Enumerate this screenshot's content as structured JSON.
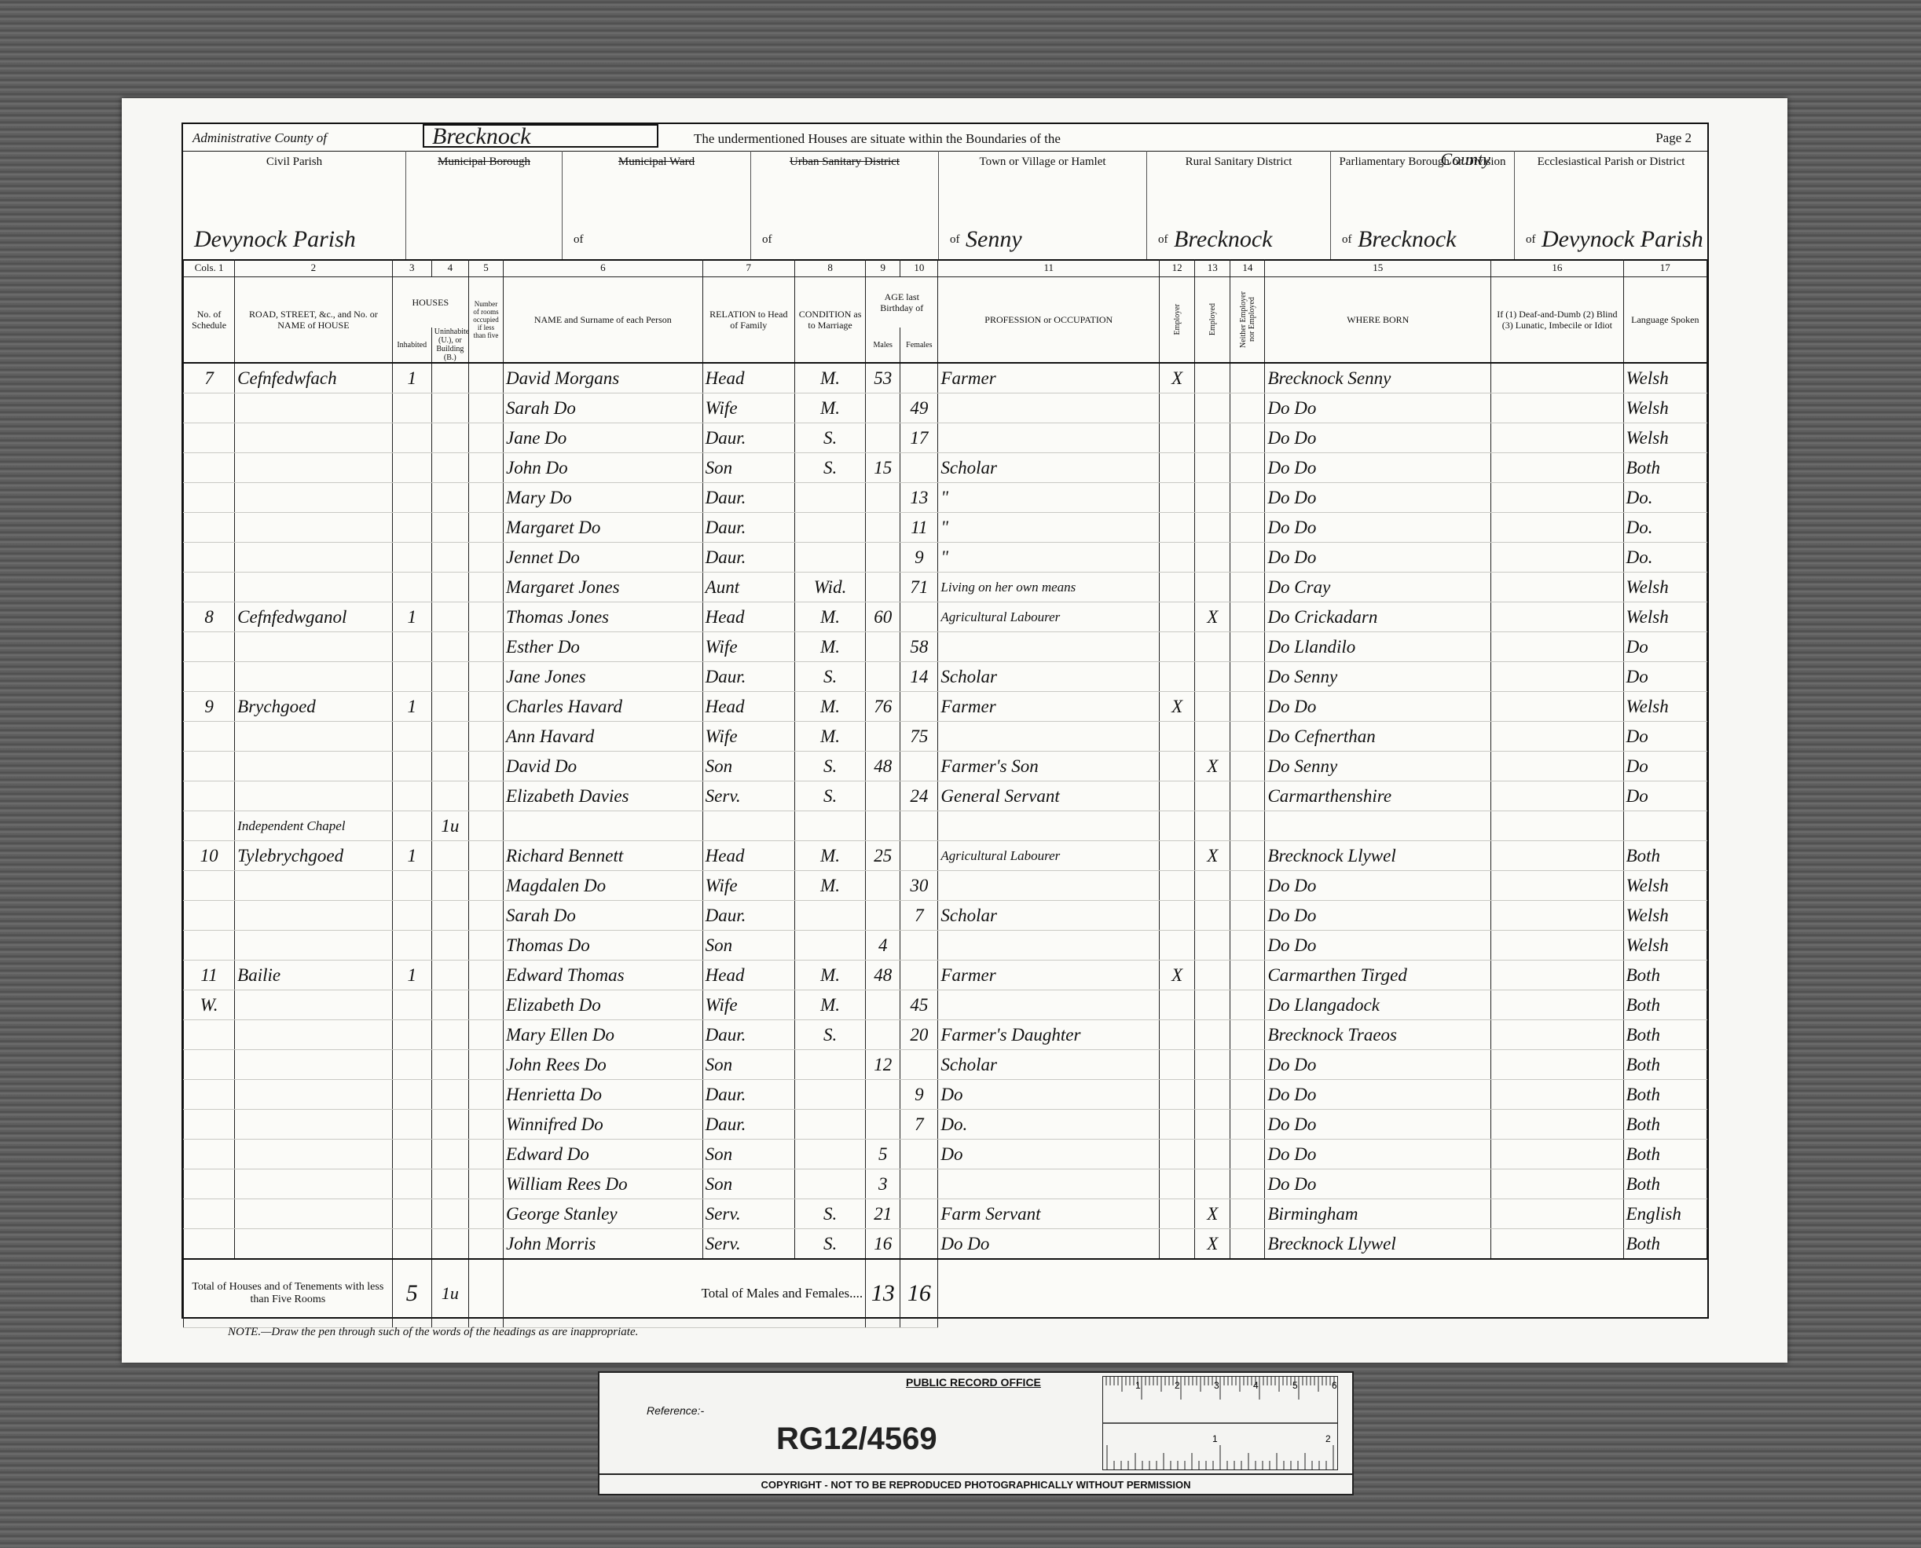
{
  "header": {
    "county_label": "Administrative County of",
    "county": "Brecknock",
    "boundaries": "The undermentioned Houses are situate within the Boundaries of the",
    "page": "Page 2"
  },
  "areas": [
    {
      "label": "Civil Parish",
      "value": "Devynock Parish"
    },
    {
      "label": "Municipal Borough",
      "struck": true
    },
    {
      "label": "Municipal Ward",
      "struck": true,
      "prefix": "of"
    },
    {
      "label": "Urban Sanitary District",
      "struck": true,
      "prefix": "of"
    },
    {
      "label": "Town or Village or Hamlet",
      "prefix": "of",
      "value": "Senny"
    },
    {
      "label": "Rural Sanitary District",
      "prefix": "of",
      "value": "Brecknock"
    },
    {
      "label": "Parliamentary Borough or Division",
      "annotation": "County",
      "prefix": "of",
      "value": "Brecknock"
    },
    {
      "label": "Ecclesiastical Parish or District",
      "prefix": "of",
      "value": "Devynock Parish"
    }
  ],
  "table": {
    "groups": [
      "HOUSES",
      "AGE last Birthday of"
    ],
    "columns": [
      {
        "number": "Cols. 1",
        "heading": "No. of Schedule"
      },
      {
        "number": "2",
        "heading": "ROAD, STREET, &c., and No. or NAME of HOUSE"
      },
      {
        "number": "3",
        "heading": "Inhabited"
      },
      {
        "number": "4",
        "heading": "Uninhabited (U.), or Building (B.)"
      },
      {
        "number": "5",
        "heading": "Number of rooms occupied if less than five"
      },
      {
        "number": "6",
        "heading": "NAME and Surname of each Person"
      },
      {
        "number": "7",
        "heading": "RELATION to Head of Family"
      },
      {
        "number": "8",
        "heading": "CONDITION as to Marriage"
      },
      {
        "number": "9",
        "heading": "Males"
      },
      {
        "number": "10",
        "heading": "Females"
      },
      {
        "number": "11",
        "heading": "PROFESSION or OCCUPATION"
      },
      {
        "number": "12",
        "heading": "Employer"
      },
      {
        "number": "13",
        "heading": "Employed"
      },
      {
        "number": "14",
        "heading": "Neither Employer nor Employed"
      },
      {
        "number": "15",
        "heading": "WHERE BORN"
      },
      {
        "number": "16",
        "heading": "If (1) Deaf-and-Dumb (2) Blind (3) Lunatic, Imbecile or Idiot"
      },
      {
        "number": "17",
        "heading": "Language Spoken"
      }
    ],
    "rows": [
      {
        "schedule": 7,
        "address": "Cefnfedwfach",
        "inhabited": 1,
        "name": "David Morgans",
        "relation": "Head",
        "condition": "M.",
        "males": 53,
        "occupation": "Farmer",
        "employer": "X",
        "where_born": "Brecknock Senny",
        "language": "Welsh"
      },
      {
        "name": "Sarah Do",
        "relation": "Wife",
        "condition": "M.",
        "females": 49,
        "where_born": "Do Do",
        "language": "Welsh"
      },
      {
        "name": "Jane Do",
        "relation": "Daur.",
        "condition": "S.",
        "females": 17,
        "where_born": "Do Do",
        "language": "Welsh"
      },
      {
        "name": "John Do",
        "relation": "Son",
        "condition": "S.",
        "males": 15,
        "occupation": "Scholar",
        "where_born": "Do Do",
        "language": "Both"
      },
      {
        "name": "Mary Do",
        "relation": "Daur.",
        "females": 13,
        "occupation": "\"",
        "where_born": "Do Do",
        "language": "Do."
      },
      {
        "name": "Margaret Do",
        "relation": "Daur.",
        "females": 11,
        "occupation": "\"",
        "where_born": "Do Do",
        "language": "Do."
      },
      {
        "name": "Jennet Do",
        "relation": "Daur.",
        "females": 9,
        "occupation": "\"",
        "where_born": "Do Do",
        "language": "Do."
      },
      {
        "name": "Margaret Jones",
        "relation": "Aunt",
        "condition": "Wid.",
        "females": 71,
        "occupation": "Living on her own means",
        "where_born": "Do Cray",
        "language": "Welsh"
      },
      {
        "schedule": 8,
        "address": "Cefnfedwganol",
        "inhabited": 1,
        "name": "Thomas Jones",
        "relation": "Head",
        "condition": "M.",
        "males": 60,
        "occupation": "Agricultural Labourer",
        "employed": "X",
        "where_born": "Do Crickadarn",
        "language": "Welsh"
      },
      {
        "name": "Esther Do",
        "relation": "Wife",
        "condition": "M.",
        "females": 58,
        "where_born": "Do Llandilo",
        "language": "Do"
      },
      {
        "name": "Jane Jones",
        "relation": "Daur.",
        "condition": "S.",
        "females": 14,
        "occupation": "Scholar",
        "where_born": "Do Senny",
        "language": "Do"
      },
      {
        "schedule": 9,
        "address": "Brychgoed",
        "inhabited": 1,
        "name": "Charles Havard",
        "relation": "Head",
        "condition": "M.",
        "males": 76,
        "occupation": "Farmer",
        "employer": "X",
        "where_born": "Do Do",
        "language": "Welsh"
      },
      {
        "name": "Ann Havard",
        "relation": "Wife",
        "condition": "M.",
        "females": 75,
        "where_born": "Do Cefnerthan",
        "language": "Do"
      },
      {
        "name": "David Do",
        "relation": "Son",
        "condition": "S.",
        "males": 48,
        "occupation": "Farmer's Son",
        "employed": "X",
        "where_born": "Do Senny",
        "language": "Do"
      },
      {
        "name": "Elizabeth Davies",
        "relation": "Serv.",
        "condition": "S.",
        "females": 24,
        "occupation": "General Servant",
        "where_born": "Carmarthenshire",
        "language": "Do"
      },
      {
        "address": "Independent Chapel",
        "uninhabited": "1u"
      },
      {
        "schedule": 10,
        "address": "Tylebrychgoed",
        "inhabited": 1,
        "name": "Richard Bennett",
        "relation": "Head",
        "condition": "M.",
        "males": 25,
        "occupation": "Agricultural Labourer",
        "employed": "X",
        "where_born": "Brecknock Llywel",
        "language": "Both"
      },
      {
        "name": "Magdalen Do",
        "relation": "Wife",
        "condition": "M.",
        "females": 30,
        "where_born": "Do Do",
        "language": "Welsh"
      },
      {
        "name": "Sarah Do",
        "relation": "Daur.",
        "females": 7,
        "occupation": "Scholar",
        "where_born": "Do Do",
        "language": "Welsh"
      },
      {
        "name": "Thomas Do",
        "relation": "Son",
        "males": 4,
        "where_born": "Do Do",
        "language": "Welsh"
      },
      {
        "schedule": 11,
        "address": "Bailie",
        "inhabited": 1,
        "name": "Edward Thomas",
        "relation": "Head",
        "condition": "M.",
        "males": 48,
        "occupation": "Farmer",
        "employer": "X",
        "where_born": "Carmarthen Tirged",
        "language": "Both"
      },
      {
        "schedule": "W.",
        "name": "Elizabeth Do",
        "relation": "Wife",
        "condition": "M.",
        "females": 45,
        "where_born": "Do Llangadock",
        "language": "Both"
      },
      {
        "name": "Mary Ellen Do",
        "relation": "Daur.",
        "condition": "S.",
        "females": 20,
        "occupation": "Farmer's Daughter",
        "where_born": "Brecknock Traeos",
        "language": "Both"
      },
      {
        "name": "John Rees Do",
        "relation": "Son",
        "males": 12,
        "occupation": "Scholar",
        "where_born": "Do Do",
        "language": "Both"
      },
      {
        "name": "Henrietta Do",
        "relation": "Daur.",
        "females": 9,
        "occupation": "Do",
        "where_born": "Do Do",
        "language": "Both"
      },
      {
        "name": "Winnifred Do",
        "relation": "Daur.",
        "females": 7,
        "occupation": "Do.",
        "where_born": "Do Do",
        "language": "Both"
      },
      {
        "name": "Edward Do",
        "relation": "Son",
        "males": 5,
        "occupation": "Do",
        "where_born": "Do Do",
        "language": "Both"
      },
      {
        "name": "William Rees Do",
        "relation": "Son",
        "males": 3,
        "where_born": "Do Do",
        "language": "Both"
      },
      {
        "name": "George Stanley",
        "relation": "Serv.",
        "condition": "S.",
        "males": 21,
        "occupation": "Farm Servant",
        "employed": "X",
        "where_born": "Birmingham",
        "language": "English"
      },
      {
        "name": "John Morris",
        "relation": "Serv.",
        "condition": "S.",
        "males": 16,
        "occupation": "Do Do",
        "employed": "X",
        "where_born": "Brecknock Llywel",
        "language": "Both"
      }
    ],
    "totals": {
      "houses_label": "Total of Houses and of Tenements with less than Five Rooms",
      "inhabited": 5,
      "uninhabited": "1u",
      "persons_label": "Total of Males and Females....",
      "males": 13,
      "females": 16
    }
  },
  "note": "NOTE.—Draw the pen through such of the words of the headings as are inappropriate.",
  "footer": {
    "office": "PUBLIC RECORD OFFICE",
    "reference_label": "Reference:-",
    "reference": "RG12/4569",
    "copyright": "COPYRIGHT - NOT TO BE REPRODUCED PHOTOGRAPHICALLY WITHOUT PERMISSION",
    "ruler_top": [
      1,
      2,
      3,
      4,
      5,
      6
    ],
    "ruler_bottom": [
      1,
      2
    ]
  }
}
